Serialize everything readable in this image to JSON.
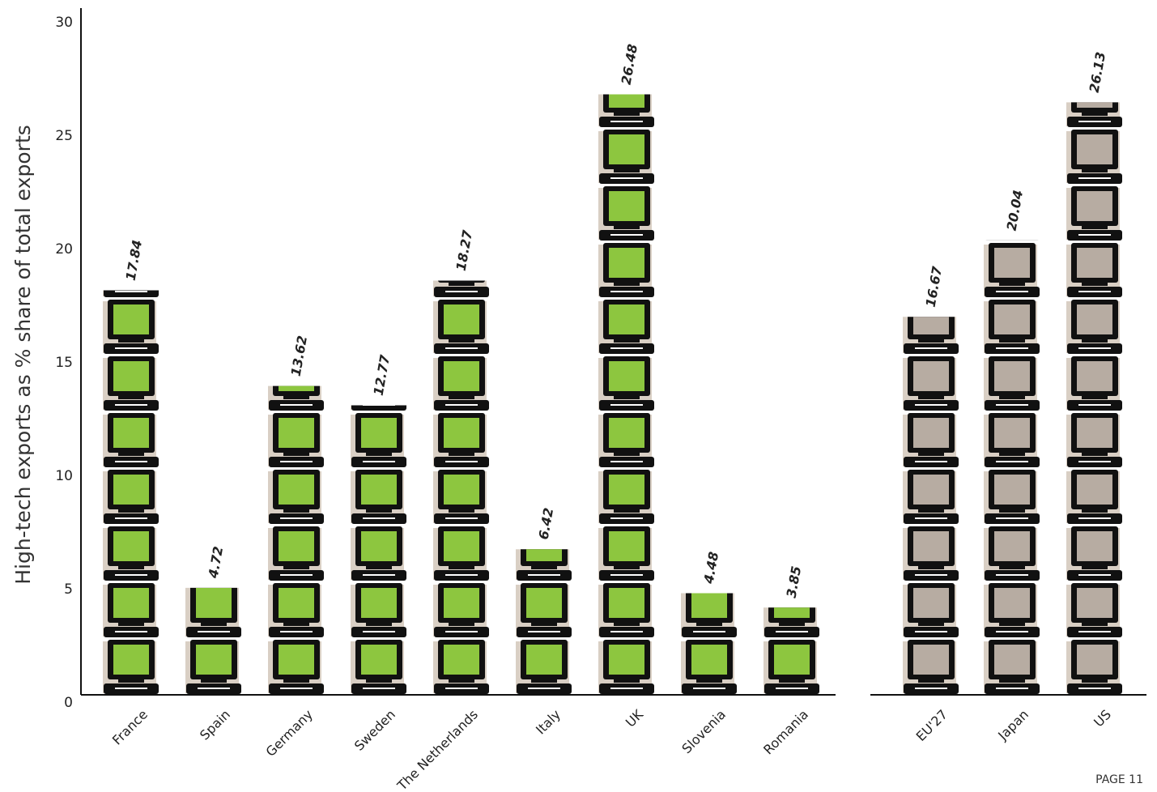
{
  "chart_data": {
    "type": "pictogram-bar",
    "y_label": "High-tech exports as % share of total exports",
    "categories": [
      "France",
      "Spain",
      "Germany",
      "Sweden",
      "The Netherlands",
      "Italy",
      "UK",
      "Slovenia",
      "Romania",
      "EU'27",
      "Japan",
      "US"
    ],
    "series": [
      {
        "color": "#8dc63f",
        "values": [
          17.84,
          4.72,
          13.62,
          12.77,
          18.27,
          6.42,
          26.48,
          4.48,
          3.85,
          null,
          null,
          null
        ]
      },
      {
        "color": "#b7aca2",
        "values": [
          null,
          null,
          null,
          null,
          null,
          null,
          null,
          null,
          null,
          16.67,
          20.04,
          26.13
        ]
      }
    ],
    "ylim": [
      0,
      30
    ],
    "yticks": [
      0,
      5,
      10,
      15,
      20,
      25,
      30
    ],
    "page_label": "PAGE 11"
  }
}
